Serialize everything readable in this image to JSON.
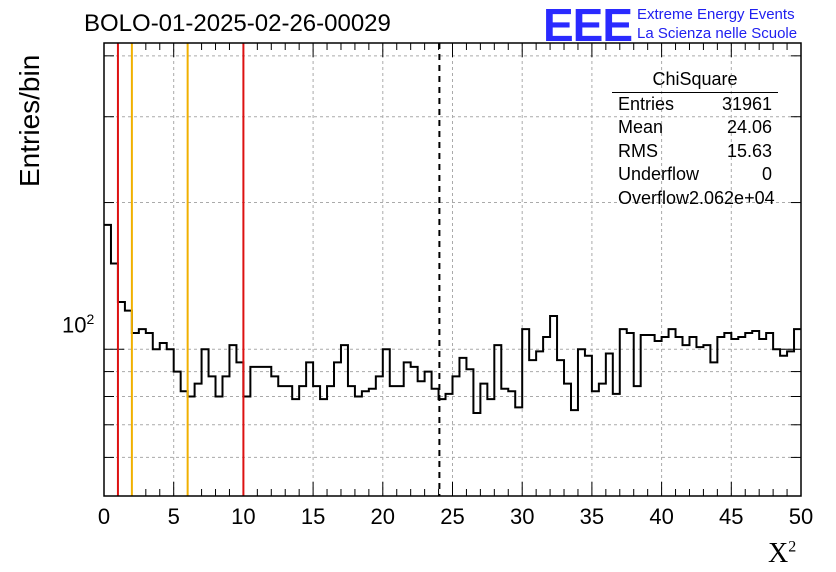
{
  "header": {
    "title": "BOLO-01-2025-02-26-00029",
    "logo_text": "EEE",
    "logo_line1": "Extreme Energy Events",
    "logo_line2": "La Scienza nelle Scuole"
  },
  "stats": {
    "name": "ChiSquare",
    "rows": [
      {
        "label": "Entries",
        "value": "31961"
      },
      {
        "label": "Mean",
        "value": "24.06"
      },
      {
        "label": "RMS",
        "value": "15.63"
      },
      {
        "label": "Underflow",
        "value": "0"
      },
      {
        "label": "Overflow",
        "value": "2.062e+04"
      }
    ]
  },
  "colors": {
    "red_line": "#dd1111",
    "orange_line": "#f0b000",
    "hist": "#000000",
    "grid": "#aaaaaa"
  },
  "chart_data": {
    "type": "histogram",
    "title": "BOLO-01-2025-02-26-00029",
    "xlabel": "X",
    "xlabel_sup": "2",
    "ylabel": "Entries/bin",
    "x_ticks": [
      "0",
      "5",
      "10",
      "15",
      "20",
      "25",
      "30",
      "35",
      "40",
      "45",
      "50"
    ],
    "y_tick_label": "10",
    "y_tick_sup": "2",
    "y_log": true,
    "xlim": [
      0,
      50
    ],
    "ylim": [
      50,
      425
    ],
    "grid": true,
    "bin_width": 0.5,
    "values": [
      180,
      150,
      125,
      120,
      108,
      110,
      108,
      100,
      103,
      100,
      90,
      82,
      80,
      85,
      100,
      88,
      80,
      88,
      102,
      94,
      80,
      92,
      92,
      92,
      88,
      84,
      84,
      79,
      84,
      94,
      84,
      79,
      84,
      94,
      102,
      84,
      80,
      82,
      83,
      88,
      100,
      84,
      84,
      94,
      92,
      86,
      90,
      83,
      79,
      81,
      88,
      96,
      91,
      74,
      85,
      79,
      102,
      83,
      82,
      76,
      110,
      95,
      99,
      106,
      117,
      95,
      85,
      75,
      100,
      97,
      82,
      85,
      98,
      81,
      110,
      108,
      84,
      107,
      107,
      104,
      106,
      110,
      106,
      102,
      106,
      101,
      102,
      94,
      106,
      108,
      105,
      106,
      108,
      109,
      105,
      108,
      100,
      97,
      99,
      110
    ],
    "vertical_lines": [
      {
        "x": 1,
        "color": "red",
        "style": "solid"
      },
      {
        "x": 2,
        "color": "orange",
        "style": "solid"
      },
      {
        "x": 6,
        "color": "orange",
        "style": "solid"
      },
      {
        "x": 10,
        "color": "red",
        "style": "solid"
      },
      {
        "x": 24.06,
        "color": "black",
        "style": "dashed"
      }
    ]
  }
}
